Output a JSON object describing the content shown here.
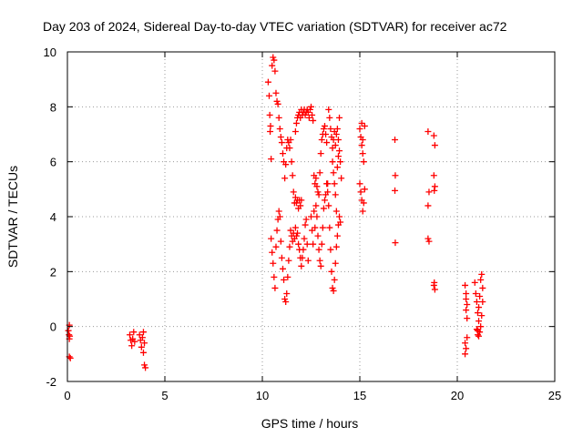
{
  "chart_data": {
    "type": "scatter",
    "title": "Day 203 of 2024, Sidereal Day-to-day VTEC variation (SDTVAR) for receiver ac72",
    "xlabel": "GPS time / hours",
    "ylabel": "SDTVAR / TECUs",
    "xlim": [
      0,
      25
    ],
    "ylim": [
      -2,
      10
    ],
    "xticks": [
      "0",
      "5",
      "10",
      "15",
      "20",
      "25"
    ],
    "yticks": [
      "-2",
      "0",
      "2",
      "4",
      "6",
      "8",
      "10"
    ],
    "grid": true,
    "marker": "plus",
    "color": "#ff0000",
    "series": [
      {
        "name": "SDTVAR",
        "points": [
          [
            0.05,
            -0.15
          ],
          [
            0.08,
            -0.3
          ],
          [
            0.1,
            -0.45
          ],
          [
            0.12,
            -0.35
          ],
          [
            0.1,
            -1.1
          ],
          [
            0.15,
            -1.15
          ],
          [
            0.1,
            0.05
          ],
          [
            3.2,
            -0.3
          ],
          [
            3.25,
            -0.5
          ],
          [
            3.3,
            -0.7
          ],
          [
            3.35,
            -0.45
          ],
          [
            3.4,
            -0.2
          ],
          [
            3.45,
            -0.55
          ],
          [
            3.7,
            -0.3
          ],
          [
            3.75,
            -0.5
          ],
          [
            3.8,
            -0.75
          ],
          [
            3.85,
            -0.4
          ],
          [
            3.9,
            -0.95
          ],
          [
            3.95,
            -0.6
          ],
          [
            3.95,
            -1.4
          ],
          [
            4.0,
            -1.5
          ],
          [
            3.9,
            -0.2
          ],
          [
            10.3,
            8.9
          ],
          [
            10.35,
            8.4
          ],
          [
            10.38,
            7.7
          ],
          [
            10.4,
            7.1
          ],
          [
            10.42,
            7.3
          ],
          [
            10.45,
            6.1
          ],
          [
            10.5,
            9.5
          ],
          [
            10.55,
            9.8
          ],
          [
            10.6,
            9.7
          ],
          [
            10.65,
            9.3
          ],
          [
            10.7,
            8.5
          ],
          [
            10.75,
            8.2
          ],
          [
            10.8,
            8.1
          ],
          [
            10.85,
            7.6
          ],
          [
            10.9,
            7.2
          ],
          [
            10.95,
            6.9
          ],
          [
            11.0,
            6.7
          ],
          [
            11.05,
            6.3
          ],
          [
            11.1,
            6.0
          ],
          [
            11.15,
            5.4
          ],
          [
            11.2,
            5.9
          ],
          [
            11.25,
            6.5
          ],
          [
            11.3,
            6.8
          ],
          [
            11.35,
            6.7
          ],
          [
            11.4,
            6.5
          ],
          [
            11.45,
            6.8
          ],
          [
            11.5,
            6.0
          ],
          [
            11.55,
            5.5
          ],
          [
            11.6,
            4.9
          ],
          [
            11.65,
            4.5
          ],
          [
            11.7,
            4.7
          ],
          [
            11.75,
            4.5
          ],
          [
            11.8,
            4.6
          ],
          [
            11.85,
            4.3
          ],
          [
            11.9,
            4.6
          ],
          [
            11.95,
            4.4
          ],
          [
            12.0,
            4.6
          ],
          [
            10.45,
            3.2
          ],
          [
            10.5,
            2.7
          ],
          [
            10.55,
            2.3
          ],
          [
            10.6,
            1.8
          ],
          [
            10.65,
            1.4
          ],
          [
            10.7,
            2.9
          ],
          [
            10.75,
            3.5
          ],
          [
            10.8,
            3.9
          ],
          [
            10.85,
            4.2
          ],
          [
            10.9,
            4.0
          ],
          [
            10.95,
            3.1
          ],
          [
            11.0,
            2.5
          ],
          [
            11.05,
            2.1
          ],
          [
            11.1,
            1.7
          ],
          [
            11.15,
            1.0
          ],
          [
            11.2,
            0.9
          ],
          [
            11.25,
            1.2
          ],
          [
            11.3,
            1.8
          ],
          [
            11.35,
            2.4
          ],
          [
            11.4,
            2.9
          ],
          [
            11.45,
            3.5
          ],
          [
            11.5,
            3.3
          ],
          [
            11.55,
            3.1
          ],
          [
            11.6,
            3.4
          ],
          [
            11.65,
            3.2
          ],
          [
            11.7,
            3.6
          ],
          [
            11.75,
            3.3
          ],
          [
            11.8,
            3.4
          ],
          [
            11.85,
            3.0
          ],
          [
            11.9,
            2.8
          ],
          [
            11.95,
            2.5
          ],
          [
            12.0,
            2.2
          ],
          [
            12.05,
            2.5
          ],
          [
            12.1,
            2.8
          ],
          [
            12.15,
            3.2
          ],
          [
            12.2,
            3.7
          ],
          [
            12.25,
            3.9
          ],
          [
            12.3,
            3.0
          ],
          [
            12.35,
            2.4
          ],
          [
            11.7,
            7.1
          ],
          [
            11.75,
            7.4
          ],
          [
            11.8,
            7.6
          ],
          [
            11.85,
            7.7
          ],
          [
            11.9,
            7.8
          ],
          [
            11.95,
            7.6
          ],
          [
            12.0,
            7.9
          ],
          [
            12.05,
            7.7
          ],
          [
            12.1,
            7.8
          ],
          [
            12.15,
            7.9
          ],
          [
            12.2,
            7.7
          ],
          [
            12.25,
            7.8
          ],
          [
            12.3,
            7.9
          ],
          [
            12.35,
            7.8
          ],
          [
            12.4,
            7.6
          ],
          [
            12.45,
            7.9
          ],
          [
            12.5,
            8.0
          ],
          [
            12.55,
            7.7
          ],
          [
            12.6,
            7.5
          ],
          [
            12.65,
            5.5
          ],
          [
            12.7,
            5.2
          ],
          [
            12.75,
            5.4
          ],
          [
            12.8,
            5.1
          ],
          [
            12.85,
            4.9
          ],
          [
            12.9,
            4.8
          ],
          [
            12.95,
            5.6
          ],
          [
            13.0,
            6.3
          ],
          [
            13.05,
            6.8
          ],
          [
            13.1,
            7.0
          ],
          [
            13.15,
            7.2
          ],
          [
            13.2,
            7.3
          ],
          [
            13.25,
            7.0
          ],
          [
            13.3,
            6.7
          ],
          [
            13.35,
            5.2
          ],
          [
            12.5,
            4.0
          ],
          [
            12.55,
            3.5
          ],
          [
            12.6,
            3.0
          ],
          [
            12.65,
            4.2
          ],
          [
            12.7,
            3.6
          ],
          [
            12.75,
            4.4
          ],
          [
            12.8,
            4.0
          ],
          [
            12.85,
            3.3
          ],
          [
            12.9,
            2.8
          ],
          [
            12.95,
            2.4
          ],
          [
            13.0,
            2.2
          ],
          [
            13.05,
            3.0
          ],
          [
            13.1,
            3.6
          ],
          [
            13.15,
            4.3
          ],
          [
            13.2,
            4.6
          ],
          [
            13.25,
            4.8
          ],
          [
            13.3,
            5.2
          ],
          [
            13.35,
            4.9
          ],
          [
            13.4,
            4.4
          ],
          [
            13.45,
            3.6
          ],
          [
            13.5,
            2.8
          ],
          [
            13.55,
            2.0
          ],
          [
            13.6,
            1.4
          ],
          [
            13.65,
            1.3
          ],
          [
            13.7,
            1.7
          ],
          [
            13.75,
            2.3
          ],
          [
            13.8,
            2.9
          ],
          [
            13.85,
            3.3
          ],
          [
            13.9,
            3.7
          ],
          [
            13.95,
            4.0
          ],
          [
            14.0,
            3.8
          ],
          [
            13.4,
            7.9
          ],
          [
            13.45,
            7.6
          ],
          [
            13.5,
            7.2
          ],
          [
            13.55,
            6.9
          ],
          [
            13.6,
            6.5
          ],
          [
            13.65,
            6.8
          ],
          [
            13.7,
            7.1
          ],
          [
            13.75,
            6.6
          ],
          [
            13.8,
            7.0
          ],
          [
            13.85,
            7.2
          ],
          [
            13.9,
            6.8
          ],
          [
            13.95,
            6.4
          ],
          [
            14.0,
            6.0
          ],
          [
            14.05,
            5.4
          ],
          [
            13.6,
            6.0
          ],
          [
            13.65,
            5.6
          ],
          [
            13.7,
            5.2
          ],
          [
            13.75,
            4.8
          ],
          [
            13.8,
            4.2
          ],
          [
            13.85,
            5.8
          ],
          [
            13.9,
            6.2
          ],
          [
            13.95,
            7.6
          ],
          [
            15.0,
            7.2
          ],
          [
            15.05,
            6.9
          ],
          [
            15.1,
            6.6
          ],
          [
            15.15,
            6.3
          ],
          [
            15.2,
            6.0
          ],
          [
            15.25,
            7.3
          ],
          [
            15.0,
            5.2
          ],
          [
            15.05,
            4.9
          ],
          [
            15.1,
            4.6
          ],
          [
            15.15,
            4.2
          ],
          [
            15.2,
            4.5
          ],
          [
            15.25,
            5.0
          ],
          [
            15.1,
            7.4
          ],
          [
            15.15,
            6.8
          ],
          [
            16.8,
            6.8
          ],
          [
            16.82,
            5.5
          ],
          [
            16.8,
            4.95
          ],
          [
            16.82,
            3.05
          ],
          [
            18.5,
            7.1
          ],
          [
            18.55,
            4.9
          ],
          [
            18.5,
            4.4
          ],
          [
            18.55,
            3.1
          ],
          [
            18.5,
            3.2
          ],
          [
            18.8,
            6.95
          ],
          [
            18.85,
            6.6
          ],
          [
            18.8,
            5.5
          ],
          [
            18.85,
            5.1
          ],
          [
            18.82,
            4.95
          ],
          [
            18.8,
            1.5
          ],
          [
            18.85,
            1.35
          ],
          [
            18.82,
            1.6
          ],
          [
            20.4,
            1.5
          ],
          [
            20.45,
            1.2
          ],
          [
            20.5,
            0.8
          ],
          [
            20.45,
            0.6
          ],
          [
            20.5,
            0.3
          ],
          [
            20.4,
            -0.6
          ],
          [
            20.45,
            -0.8
          ],
          [
            20.4,
            -1.0
          ],
          [
            20.5,
            -0.4
          ],
          [
            20.45,
            1.0
          ],
          [
            20.9,
            1.6
          ],
          [
            20.95,
            1.2
          ],
          [
            21.0,
            0.9
          ],
          [
            21.05,
            0.5
          ],
          [
            21.1,
            0.2
          ],
          [
            21.0,
            -0.1
          ],
          [
            21.05,
            -0.3
          ],
          [
            21.1,
            0.7
          ],
          [
            21.15,
            1.1
          ],
          [
            21.2,
            1.7
          ],
          [
            21.25,
            1.9
          ],
          [
            21.3,
            1.4
          ],
          [
            21.3,
            0.9
          ],
          [
            21.25,
            0.4
          ],
          [
            21.2,
            0.0
          ],
          [
            21.15,
            -0.2
          ],
          [
            21.1,
            -0.35
          ],
          [
            21.05,
            -0.15
          ]
        ]
      }
    ]
  }
}
